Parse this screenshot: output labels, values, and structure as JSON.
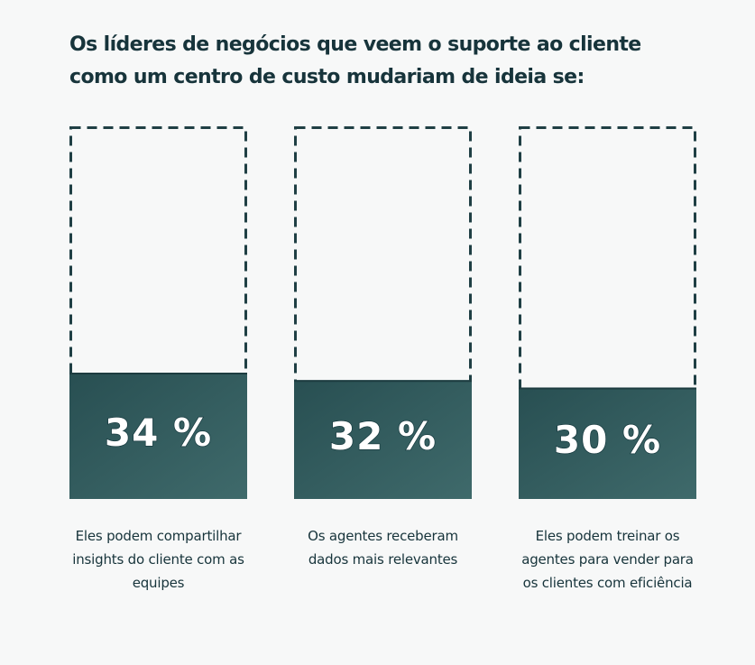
{
  "title": "Os líderes de negócios que veem o suporte ao cliente como um centro de custo mudariam de ideia se:",
  "colors": {
    "bar_fill_start": "#284f52",
    "bar_fill_end": "#3f6a6b",
    "dash_stroke": "#1f3f44",
    "background": "#f7f8f8"
  },
  "chart_data": {
    "type": "bar",
    "title": "Os líderes de negócios que veem o suporte ao cliente como um centro de custo mudariam de ideia se:",
    "ylim": [
      0,
      100
    ],
    "categories": [
      "Eles podem compartilhar insights do cliente com as equipes",
      "Os agentes receberam dados mais relevantes",
      "Eles podem treinar os agentes para vender para os clientes com eficiência"
    ],
    "values": [
      34,
      32,
      30
    ],
    "value_labels": [
      "34 %",
      "32 %",
      "30 %"
    ],
    "grid": false
  }
}
